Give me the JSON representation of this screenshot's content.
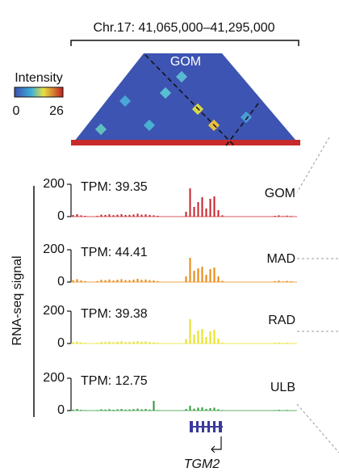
{
  "region": "Chr.17: 41,065,000–41,295,000",
  "heatmap": {
    "label": "GOM",
    "legend_title": "Intensity",
    "legend_min": 0,
    "legend_max": 26
  },
  "y_axis_label": "RNA-seq signal",
  "gene": "TGM2",
  "tracks": [
    {
      "name": "GOM",
      "tpm_label": "TPM: 39.35",
      "color": "#c8202a",
      "ylim": [
        0,
        200
      ],
      "yticks": [
        0,
        200
      ],
      "values": [
        10,
        15,
        8,
        5,
        0,
        0,
        5,
        12,
        10,
        14,
        9,
        12,
        15,
        10,
        11,
        13,
        18,
        12,
        14,
        10,
        8,
        5,
        0,
        0,
        0,
        0,
        0,
        0,
        30,
        175,
        60,
        90,
        120,
        50,
        110,
        125,
        40,
        8,
        0,
        0,
        0,
        0,
        0,
        0,
        0,
        0,
        0,
        0,
        0,
        0,
        5,
        8,
        3,
        6,
        4,
        0
      ]
    },
    {
      "name": "MAD",
      "tpm_label": "TPM: 44.41",
      "color": "#e8860e",
      "ylim": [
        0,
        200
      ],
      "yticks": [
        0,
        200
      ],
      "values": [
        12,
        18,
        10,
        6,
        0,
        0,
        6,
        14,
        12,
        16,
        10,
        14,
        18,
        12,
        12,
        15,
        20,
        14,
        16,
        12,
        10,
        6,
        0,
        0,
        0,
        0,
        0,
        0,
        35,
        150,
        70,
        85,
        95,
        45,
        80,
        90,
        35,
        8,
        0,
        0,
        0,
        0,
        0,
        0,
        0,
        0,
        0,
        0,
        0,
        0,
        6,
        9,
        4,
        7,
        5,
        0
      ]
    },
    {
      "name": "RAD",
      "tpm_label": "TPM: 39.38",
      "color": "#e6e020",
      "ylim": [
        0,
        200
      ],
      "yticks": [
        0,
        200
      ],
      "values": [
        8,
        12,
        7,
        4,
        0,
        0,
        4,
        10,
        9,
        12,
        8,
        11,
        14,
        9,
        10,
        12,
        16,
        11,
        13,
        9,
        7,
        4,
        0,
        0,
        0,
        0,
        0,
        0,
        28,
        150,
        55,
        80,
        90,
        40,
        75,
        85,
        30,
        6,
        0,
        0,
        0,
        0,
        0,
        0,
        0,
        0,
        0,
        0,
        0,
        0,
        4,
        6,
        3,
        5,
        3,
        0
      ]
    },
    {
      "name": "ULB",
      "tpm_label": "TPM: 12.75",
      "color": "#2e9a3a",
      "ylim": [
        0,
        200
      ],
      "yticks": [
        0,
        200
      ],
      "values": [
        6,
        10,
        5,
        3,
        0,
        0,
        3,
        8,
        6,
        9,
        5,
        8,
        10,
        6,
        7,
        9,
        12,
        8,
        10,
        6,
        60,
        3,
        0,
        0,
        0,
        0,
        0,
        0,
        10,
        30,
        12,
        18,
        20,
        10,
        15,
        18,
        8,
        3,
        0,
        0,
        0,
        0,
        0,
        0,
        0,
        0,
        0,
        0,
        0,
        0,
        3,
        5,
        2,
        4,
        2,
        0
      ]
    }
  ]
}
